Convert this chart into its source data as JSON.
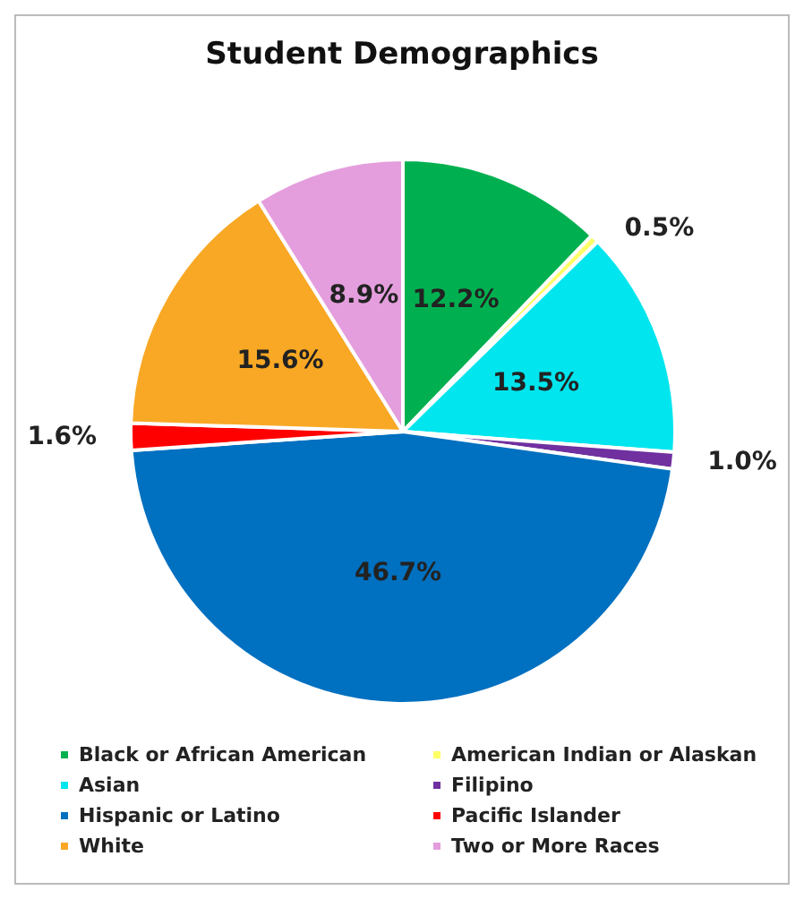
{
  "chart_data": {
    "type": "pie",
    "title": "Student Demographics",
    "categories": [
      "Black or African American",
      "American Indian or Alaskan",
      "Asian",
      "Filipino",
      "Hispanic or Latino",
      "Pacific Islander",
      "White",
      "Two or More Races"
    ],
    "values": [
      12.2,
      0.5,
      13.5,
      1.0,
      46.7,
      1.6,
      15.6,
      8.9
    ],
    "value_labels": [
      "12.2%",
      "0.5%",
      "13.5%",
      "1.0%",
      "46.7%",
      "1.6%",
      "15.6%",
      "8.9%"
    ],
    "colors": [
      "#00b050",
      "#ffff66",
      "#00e5ee",
      "#7030a0",
      "#0070c0",
      "#ff0000",
      "#f9a825",
      "#e49edd"
    ],
    "legend": "bottom"
  }
}
